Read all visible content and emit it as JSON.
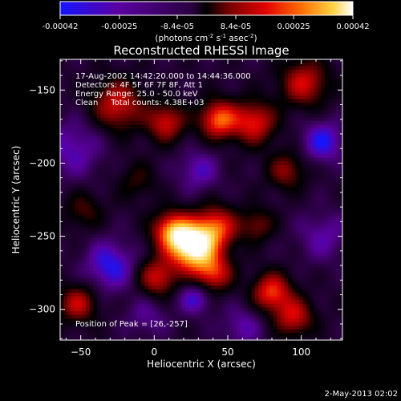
{
  "colorbar": {
    "ticks": [
      "-0.00042",
      "-0.00025",
      "-8.4e-05",
      "8.4e-05",
      "0.00025",
      "0.00042"
    ],
    "tick_values": [
      -0.00042,
      -0.00025,
      -8.4e-05,
      8.4e-05,
      0.00025,
      0.00042
    ],
    "range": [
      -0.00042,
      0.00042
    ],
    "unit_label": "(photons cm",
    "unit_sup1": "-2",
    "unit_mid": " s",
    "unit_sup2": "-1",
    "unit_end": " asec",
    "unit_sup3": "-2",
    "unit_close": ")"
  },
  "info": {
    "line1": "17-Aug-2002 14:42:20.000 to 14:44:36.000",
    "line2": "Detectors: 4F 5F 6F 7F 8F, Att 1",
    "line3": "Energy Range: 25.0 - 50.0 keV",
    "line4": "Clean     Total counts: 4.38E+03",
    "peak": "Position of Peak = [26,-257]"
  },
  "footer": {
    "timestamp": "2-May-2013 02:02"
  },
  "chart_data": {
    "type": "heatmap",
    "title": "Reconstructed RHESSI Image",
    "xlabel": "Heliocentric X (arcsec)",
    "ylabel": "Heliocentric Y (arcsec)",
    "xlim": [
      -64,
      128
    ],
    "ylim": [
      -321,
      -129
    ],
    "x_ticks": [
      -50,
      0,
      50,
      100
    ],
    "x_tick_labels": [
      "−50",
      "0",
      "50",
      "100"
    ],
    "y_ticks": [
      -150,
      -200,
      -250,
      -300
    ],
    "y_tick_labels": [
      "−150",
      "−200",
      "−250",
      "−300"
    ],
    "colormap": [
      "#1515ff",
      "#5a00a0",
      "#2a0040",
      "#000000",
      "#7a0000",
      "#e00000",
      "#ff6a00",
      "#ffd040",
      "#ffffff"
    ],
    "peak": [
      26,
      -257
    ],
    "sources": [
      {
        "x": 26,
        "y": -257,
        "amp": 1.0,
        "w": 11
      },
      {
        "x": 12,
        "y": -246,
        "amp": 0.62,
        "w": 9
      },
      {
        "x": 42,
        "y": -244,
        "amp": 0.55,
        "w": 10
      },
      {
        "x": 40,
        "y": -275,
        "amp": 0.5,
        "w": 9
      },
      {
        "x": 2,
        "y": -278,
        "amp": 0.45,
        "w": 9
      },
      {
        "x": 44,
        "y": -170,
        "amp": 0.62,
        "w": 9
      },
      {
        "x": 68,
        "y": -172,
        "amp": 0.5,
        "w": 10
      },
      {
        "x": 8,
        "y": -172,
        "amp": 0.45,
        "w": 9
      },
      {
        "x": -25,
        "y": -160,
        "amp": 0.45,
        "w": 12
      },
      {
        "x": 102,
        "y": -145,
        "amp": 0.45,
        "w": 11
      },
      {
        "x": 90,
        "y": -205,
        "amp": 0.32,
        "w": 9
      },
      {
        "x": 80,
        "y": -288,
        "amp": 0.55,
        "w": 9
      },
      {
        "x": 95,
        "y": -305,
        "amp": 0.45,
        "w": 9
      },
      {
        "x": -52,
        "y": -296,
        "amp": 0.42,
        "w": 9
      },
      {
        "x": -48,
        "y": -232,
        "amp": 0.22,
        "w": 9
      },
      {
        "x": 70,
        "y": -242,
        "amp": 0.28,
        "w": 8
      },
      {
        "x": -12,
        "y": -212,
        "amp": 0.18,
        "w": 9
      },
      {
        "x": -30,
        "y": -270,
        "amp": -0.35,
        "w": 12
      },
      {
        "x": 115,
        "y": -185,
        "amp": -0.35,
        "w": 10
      },
      {
        "x": 28,
        "y": -292,
        "amp": -0.3,
        "w": 8
      },
      {
        "x": -55,
        "y": -190,
        "amp": -0.25,
        "w": 14
      },
      {
        "x": 30,
        "y": -205,
        "amp": -0.25,
        "w": 10
      },
      {
        "x": 115,
        "y": -250,
        "amp": -0.22,
        "w": 12
      },
      {
        "x": 60,
        "y": -312,
        "amp": -0.22,
        "w": 10
      },
      {
        "x": -5,
        "y": -305,
        "amp": -0.18,
        "w": 10
      }
    ]
  }
}
